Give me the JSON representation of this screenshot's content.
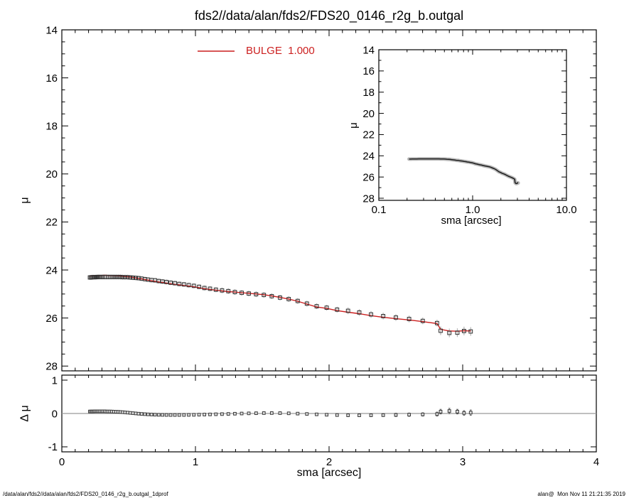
{
  "title": "fds2//data/alan/fds2/FDS20_0146_r2g_b.outgal",
  "legend": {
    "label": "BULGE  1.000",
    "color": "#cc1f1f"
  },
  "footer": {
    "left": "/data/alan/fds2//data/alan/fds2/FDS20_0146_r2g_b.outgal_1dprof",
    "right": "alan@  Mon Nov 11 21:21:35 2019"
  },
  "colors": {
    "model_red": "#cc1f1f",
    "data_dark": "#2e2e2e",
    "band_grey": "#b4b4b4",
    "inset_band": "#b8b8b8",
    "zero_line": "#999999",
    "axis": "#000000",
    "residual_fill": "#e0e0e0"
  },
  "chart_data": {
    "type": "multi-panel",
    "panels": [
      {
        "id": "main",
        "type": "scatter+line",
        "xlabel": "",
        "ylabel": "μ",
        "xlim": [
          0,
          4
        ],
        "ylim": [
          14,
          28.2
        ],
        "y_inverted": true,
        "xticks": [
          0,
          1,
          2,
          3,
          4
        ],
        "xtick_labels": [],
        "x_minor_step": 0.1,
        "yticks": [
          14,
          16,
          18,
          20,
          22,
          24,
          26,
          28
        ],
        "ytick_labels": [
          "14",
          "16",
          "18",
          "20",
          "22",
          "24",
          "26",
          "28"
        ],
        "y_minor_step": 0.5,
        "legend_entries": [
          {
            "label": "BULGE  1.000",
            "style": "red-line"
          }
        ]
      },
      {
        "id": "inset",
        "type": "line",
        "xlabel": "sma [arcsec]",
        "ylabel": "μ",
        "xscale": "log",
        "xlim": [
          0.1,
          10
        ],
        "ylim": [
          14,
          28.2
        ],
        "y_inverted": true,
        "xticks": [
          0.1,
          1,
          10
        ],
        "xtick_labels": [
          "0.1",
          "1.0",
          "10.0"
        ],
        "yticks": [
          14,
          16,
          18,
          20,
          22,
          24,
          26,
          28
        ],
        "ytick_labels": [
          "14",
          "16",
          "18",
          "20",
          "22",
          "24",
          "26",
          "28"
        ],
        "y_minor_step": 1
      },
      {
        "id": "residual",
        "type": "scatter",
        "xlabel": "sma [arcsec]",
        "ylabel": "Δ μ",
        "xlim": [
          0,
          4
        ],
        "ylim": [
          -1.15,
          1.15
        ],
        "xticks": [
          0,
          1,
          2,
          3,
          4
        ],
        "xtick_labels": [
          "0",
          "1",
          "2",
          "3",
          "4"
        ],
        "x_minor_step": 0.1,
        "yticks": [
          -1,
          0,
          1
        ],
        "ytick_labels": [
          "-1",
          "0",
          "1"
        ],
        "zero_line": 0
      }
    ],
    "profile": {
      "sma": [
        0.21,
        0.218,
        0.227,
        0.236,
        0.245,
        0.255,
        0.265,
        0.275,
        0.286,
        0.298,
        0.309,
        0.321,
        0.334,
        0.347,
        0.361,
        0.375,
        0.39,
        0.406,
        0.422,
        0.438,
        0.455,
        0.473,
        0.492,
        0.512,
        0.532,
        0.553,
        0.574,
        0.597,
        0.621,
        0.645,
        0.671,
        0.697,
        0.725,
        0.753,
        0.783,
        0.814,
        0.846,
        0.879,
        0.914,
        0.95,
        0.988,
        1.027,
        1.067,
        1.109,
        1.153,
        1.199,
        1.246,
        1.295,
        1.346,
        1.399,
        1.454,
        1.512,
        1.571,
        1.633,
        1.698,
        1.765,
        1.834,
        1.907,
        1.982,
        2.06,
        2.142,
        2.226,
        2.314,
        2.405,
        2.5,
        2.599,
        2.701,
        2.808,
        2.835,
        2.9,
        2.96,
        3.01,
        3.06
      ],
      "mu": [
        24.31,
        24.31,
        24.3,
        24.3,
        24.3,
        24.3,
        24.29,
        24.29,
        24.29,
        24.29,
        24.29,
        24.29,
        24.29,
        24.29,
        24.29,
        24.29,
        24.29,
        24.29,
        24.29,
        24.29,
        24.3,
        24.3,
        24.3,
        24.31,
        24.32,
        24.33,
        24.34,
        24.36,
        24.38,
        24.4,
        24.42,
        24.43,
        24.46,
        24.48,
        24.5,
        24.53,
        24.55,
        24.58,
        24.6,
        24.63,
        24.66,
        24.7,
        24.75,
        24.78,
        24.82,
        24.85,
        24.88,
        24.92,
        24.95,
        24.98,
        25.01,
        25.04,
        25.09,
        25.15,
        25.21,
        25.29,
        25.4,
        25.51,
        25.57,
        25.65,
        25.7,
        25.77,
        25.85,
        25.92,
        25.98,
        26.04,
        26.12,
        26.21,
        26.53,
        26.62,
        26.61,
        26.54,
        26.56
      ],
      "mu_err": [
        0.1,
        0.1,
        0.1,
        0.1,
        0.1,
        0.1,
        0.1,
        0.1,
        0.1,
        0.1,
        0.1,
        0.1,
        0.1,
        0.1,
        0.1,
        0.1,
        0.1,
        0.1,
        0.1,
        0.1,
        0.1,
        0.1,
        0.1,
        0.1,
        0.1,
        0.1,
        0.1,
        0.1,
        0.1,
        0.1,
        0.1,
        0.1,
        0.1,
        0.1,
        0.1,
        0.1,
        0.1,
        0.1,
        0.1,
        0.1,
        0.1,
        0.1,
        0.1,
        0.1,
        0.1,
        0.12,
        0.12,
        0.12,
        0.12,
        0.12,
        0.12,
        0.12,
        0.12,
        0.12,
        0.12,
        0.12,
        0.12,
        0.12,
        0.12,
        0.12,
        0.14,
        0.14,
        0.14,
        0.14,
        0.14,
        0.14,
        0.14,
        0.14,
        0.18,
        0.18,
        0.18,
        0.18,
        0.18
      ],
      "model_mu": [
        24.25,
        24.25,
        24.24,
        24.24,
        24.23,
        24.23,
        24.23,
        24.23,
        24.23,
        24.23,
        24.22,
        24.22,
        24.22,
        24.23,
        24.23,
        24.23,
        24.23,
        24.24,
        24.24,
        24.25,
        24.26,
        24.27,
        24.28,
        24.29,
        24.31,
        24.33,
        24.35,
        24.37,
        24.4,
        24.42,
        24.45,
        24.47,
        24.5,
        24.52,
        24.55,
        24.57,
        24.6,
        24.62,
        24.65,
        24.67,
        24.7,
        24.74,
        24.78,
        24.81,
        24.84,
        24.87,
        24.9,
        24.92,
        24.95,
        24.97,
        25.0,
        25.03,
        25.08,
        25.14,
        25.21,
        25.3,
        25.42,
        25.54,
        25.6,
        25.69,
        25.76,
        25.82,
        25.9,
        25.97,
        26.03,
        26.08,
        26.15,
        26.23,
        26.47,
        26.54,
        26.55,
        26.53,
        26.54
      ],
      "dmu": [
        0.06,
        0.06,
        0.06,
        0.06,
        0.065,
        0.065,
        0.065,
        0.065,
        0.065,
        0.065,
        0.065,
        0.065,
        0.06,
        0.06,
        0.06,
        0.058,
        0.055,
        0.052,
        0.05,
        0.045,
        0.04,
        0.033,
        0.026,
        0.018,
        0.01,
        0.002,
        -0.006,
        -0.013,
        -0.02,
        -0.026,
        -0.031,
        -0.036,
        -0.04,
        -0.042,
        -0.044,
        -0.045,
        -0.045,
        -0.045,
        -0.044,
        -0.042,
        -0.04,
        -0.036,
        -0.032,
        -0.028,
        -0.023,
        -0.018,
        -0.013,
        -0.007,
        -0.001,
        0.004,
        0.008,
        0.012,
        0.013,
        0.011,
        0.005,
        -0.004,
        -0.014,
        -0.026,
        -0.038,
        -0.047,
        -0.053,
        -0.055,
        -0.053,
        -0.049,
        -0.043,
        -0.036,
        -0.028,
        -0.018,
        0.055,
        0.075,
        0.055,
        0.015,
        0.025
      ],
      "dmu_err": [
        0.008,
        0.008,
        0.008,
        0.008,
        0.008,
        0.008,
        0.008,
        0.008,
        0.008,
        0.008,
        0.008,
        0.008,
        0.008,
        0.008,
        0.008,
        0.008,
        0.008,
        0.008,
        0.008,
        0.008,
        0.012,
        0.012,
        0.012,
        0.012,
        0.012,
        0.012,
        0.012,
        0.012,
        0.012,
        0.012,
        0.012,
        0.012,
        0.012,
        0.012,
        0.012,
        0.012,
        0.012,
        0.012,
        0.012,
        0.012,
        0.018,
        0.018,
        0.018,
        0.018,
        0.018,
        0.018,
        0.018,
        0.018,
        0.018,
        0.018,
        0.024,
        0.024,
        0.024,
        0.024,
        0.024,
        0.032,
        0.032,
        0.032,
        0.032,
        0.032,
        0.042,
        0.042,
        0.042,
        0.042,
        0.05,
        0.05,
        0.05,
        0.06,
        0.07,
        0.08,
        0.07,
        0.07,
        0.08
      ]
    }
  }
}
